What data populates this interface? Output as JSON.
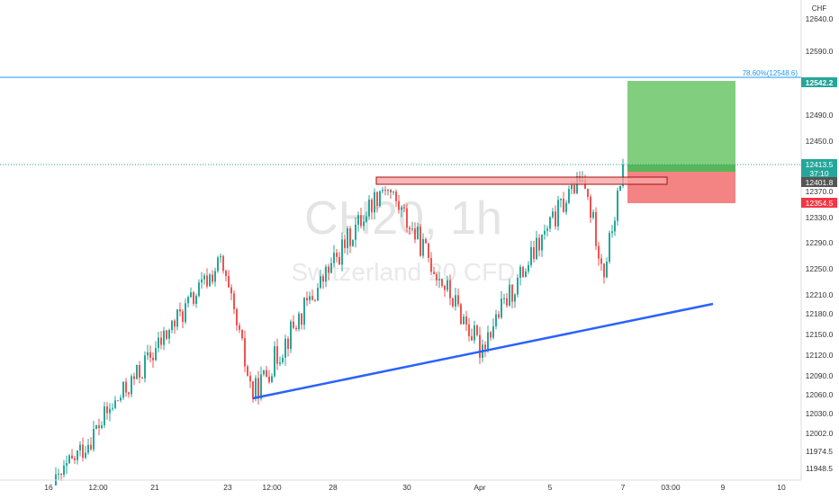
{
  "currency": "CHF",
  "watermark": {
    "symbol": "CH20, 1h",
    "name": "Switzerland 20 CFD"
  },
  "fib_label": "78.60%(12548.6)",
  "badges": {
    "target": "12542.2",
    "current_price": "12413.5",
    "countdown": "37:10",
    "entry": "12401.8",
    "stop": "12354.5"
  },
  "colors": {
    "up": "#26a69a",
    "down": "#ef5350",
    "trendline": "#2962ff",
    "fib_line": "#2196f3",
    "profit_zone": "#81cf7e",
    "loss_zone": "#f48484",
    "badge_target": "#26a69a",
    "badge_stop": "#f23645",
    "badge_entry": "#555555"
  },
  "chart_data": {
    "type": "candlestick",
    "title": "CH20, 1h",
    "subtitle": "Switzerland 20 CFD",
    "y_unit": "CHF",
    "ylim": [
      11920,
      12680
    ],
    "y_ticks": [
      {
        "v": 12640,
        "label": "12640.0"
      },
      {
        "v": 12590,
        "label": "12590.0"
      },
      {
        "v": 12490,
        "label": "12490.0"
      },
      {
        "v": 12450,
        "label": "12450.0"
      },
      {
        "v": 12370,
        "label": "12370.0"
      },
      {
        "v": 12330,
        "label": "12330.0"
      },
      {
        "v": 12290,
        "label": "12290.0"
      },
      {
        "v": 12250,
        "label": "12250.0"
      },
      {
        "v": 12210,
        "label": "12210.0"
      },
      {
        "v": 12180,
        "label": "12180.0"
      },
      {
        "v": 12150,
        "label": "12150.0"
      },
      {
        "v": 12120,
        "label": "12120.0"
      },
      {
        "v": 12090,
        "label": "12090.0"
      },
      {
        "v": 12060,
        "label": "12060.0"
      },
      {
        "v": 12030,
        "label": "12030.0"
      },
      {
        "v": 12002,
        "label": "12002.0"
      },
      {
        "v": 11974.5,
        "label": "11974.5"
      },
      {
        "v": 11948.5,
        "label": "11948.5"
      }
    ],
    "x_ticks": [
      "16",
      "12:00",
      "21",
      "23",
      "12:00",
      "28",
      "30",
      "Apr",
      "5",
      "7",
      "03:00",
      "9",
      "10"
    ],
    "key_points": [
      {
        "label": "start",
        "price": 11925
      },
      {
        "label": "peak 21-22",
        "price": 12260
      },
      {
        "label": "low 23",
        "price": 12060
      },
      {
        "label": "high 29",
        "price": 12385
      },
      {
        "label": "low Apr",
        "price": 12130
      },
      {
        "label": "high 5",
        "price": 12400
      },
      {
        "label": "dip 7",
        "price": 12248
      },
      {
        "label": "last",
        "price": 12413.5
      }
    ],
    "trendline": {
      "from": 12060,
      "to": 12195
    },
    "resistance_zone": {
      "top": 12402,
      "bottom": 12392
    },
    "fib_level": {
      "ratio": "78.60%",
      "price": 12548.6
    },
    "position": {
      "entry": 12401.8,
      "target": 12542.2,
      "stop": 12354.5
    },
    "grid": false
  }
}
